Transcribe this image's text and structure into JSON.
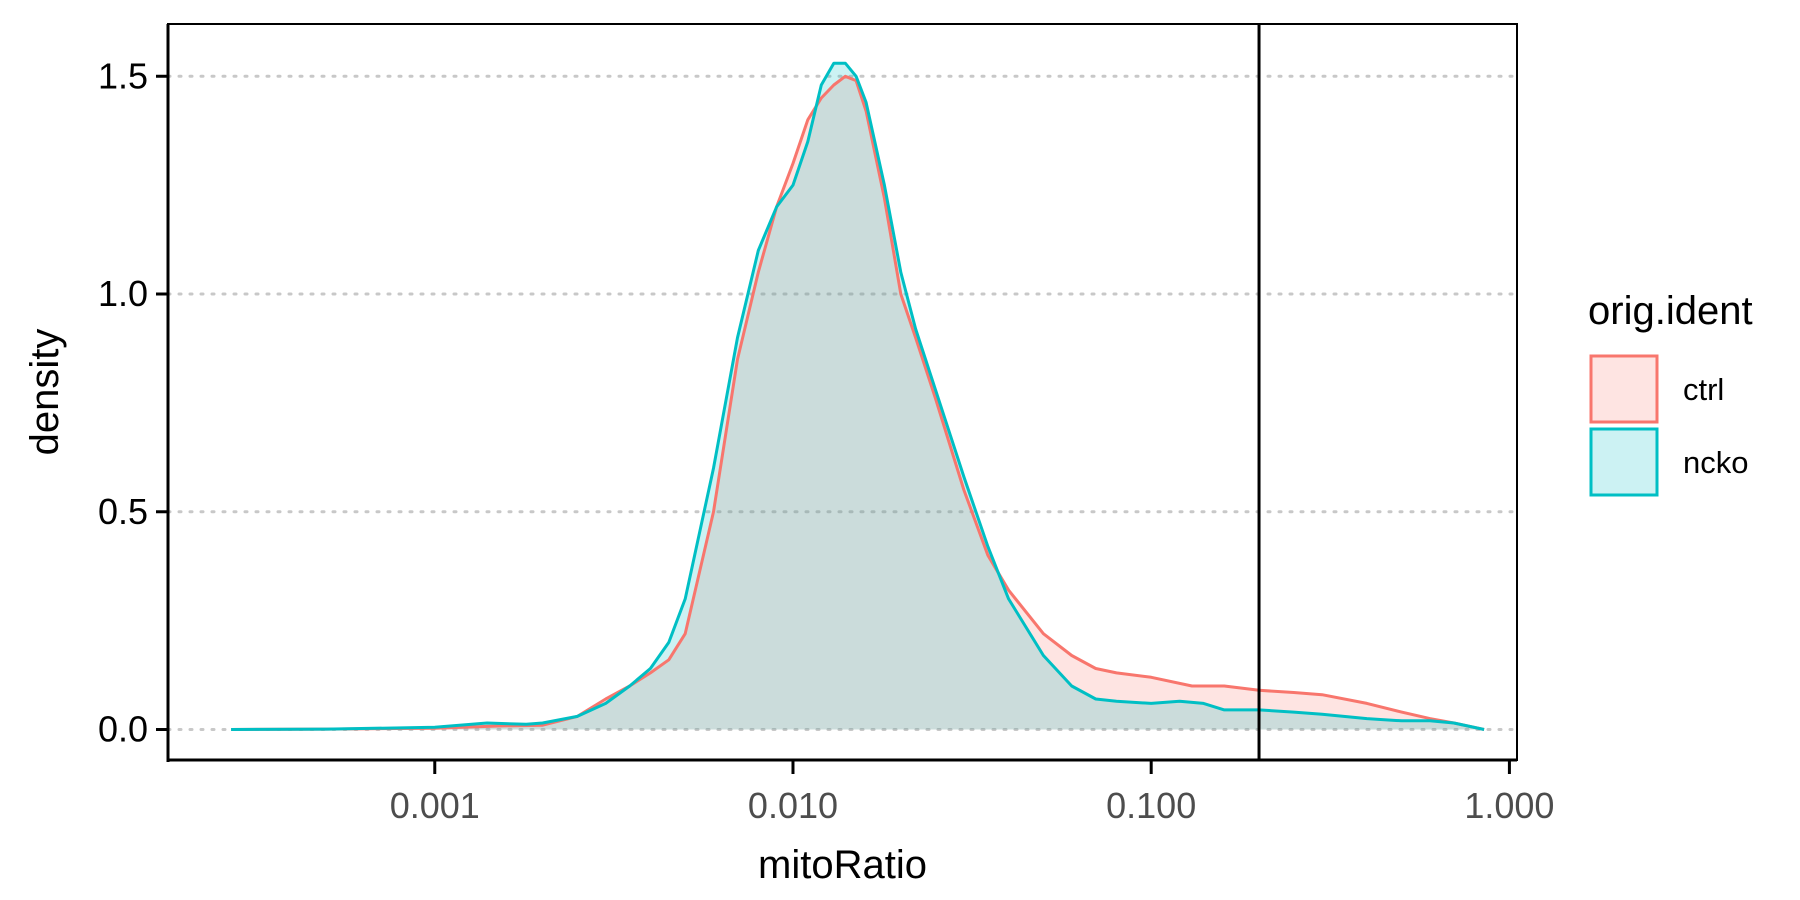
{
  "chart_data": {
    "type": "area",
    "title": "",
    "xlabel": "mitoRatio",
    "ylabel": "density",
    "x_scale": "log10",
    "xlim": [
      0.00018,
      1.05
    ],
    "ylim": [
      -0.07,
      1.62
    ],
    "x_ticks": [
      0.001,
      0.01,
      0.1,
      1
    ],
    "x_tick_labels": [
      "0.001",
      "0.010",
      "0.100",
      "1.000"
    ],
    "y_ticks": [
      0,
      0.5,
      1,
      1.5
    ],
    "y_tick_labels": [
      "0.0",
      "0.5",
      "1.0",
      "1.5"
    ],
    "grid": "horizontal dotted",
    "vline_x": 0.2,
    "legend": {
      "title": "orig.ident",
      "position": "right"
    },
    "series": [
      {
        "name": "ctrl",
        "line_color": "#F8766D",
        "fill_color": "#F8766D",
        "x": [
          0.00027,
          0.0005,
          0.001,
          0.0015,
          0.002,
          0.0025,
          0.003,
          0.0035,
          0.004,
          0.0045,
          0.005,
          0.006,
          0.007,
          0.008,
          0.009,
          0.01,
          0.011,
          0.012,
          0.013,
          0.014,
          0.015,
          0.016,
          0.018,
          0.02,
          0.022,
          0.025,
          0.03,
          0.035,
          0.04,
          0.05,
          0.06,
          0.07,
          0.08,
          0.1,
          0.13,
          0.16,
          0.2,
          0.25,
          0.3,
          0.4,
          0.5,
          0.6,
          0.7,
          0.85
        ],
        "y": [
          0.0,
          0.001,
          0.003,
          0.008,
          0.01,
          0.03,
          0.07,
          0.1,
          0.13,
          0.16,
          0.22,
          0.5,
          0.85,
          1.05,
          1.2,
          1.3,
          1.4,
          1.45,
          1.48,
          1.5,
          1.49,
          1.42,
          1.22,
          1.0,
          0.9,
          0.76,
          0.55,
          0.4,
          0.32,
          0.22,
          0.17,
          0.14,
          0.13,
          0.12,
          0.1,
          0.1,
          0.09,
          0.085,
          0.08,
          0.06,
          0.04,
          0.025,
          0.015,
          0.0
        ]
      },
      {
        "name": "ncko",
        "line_color": "#00BFC4",
        "fill_color": "#00BFC4",
        "x": [
          0.00027,
          0.0005,
          0.001,
          0.0014,
          0.0018,
          0.002,
          0.0025,
          0.003,
          0.0035,
          0.004,
          0.0045,
          0.005,
          0.006,
          0.007,
          0.008,
          0.009,
          0.01,
          0.011,
          0.012,
          0.013,
          0.014,
          0.015,
          0.016,
          0.018,
          0.02,
          0.022,
          0.025,
          0.03,
          0.035,
          0.04,
          0.05,
          0.06,
          0.07,
          0.08,
          0.1,
          0.12,
          0.14,
          0.16,
          0.2,
          0.25,
          0.3,
          0.4,
          0.5,
          0.6,
          0.7,
          0.85
        ],
        "y": [
          0.0,
          0.001,
          0.005,
          0.015,
          0.012,
          0.015,
          0.03,
          0.06,
          0.1,
          0.14,
          0.2,
          0.3,
          0.6,
          0.9,
          1.1,
          1.2,
          1.25,
          1.35,
          1.48,
          1.53,
          1.53,
          1.5,
          1.44,
          1.25,
          1.05,
          0.92,
          0.78,
          0.58,
          0.42,
          0.3,
          0.17,
          0.1,
          0.07,
          0.065,
          0.06,
          0.065,
          0.06,
          0.045,
          0.045,
          0.04,
          0.035,
          0.025,
          0.02,
          0.02,
          0.015,
          0.0
        ]
      }
    ]
  }
}
